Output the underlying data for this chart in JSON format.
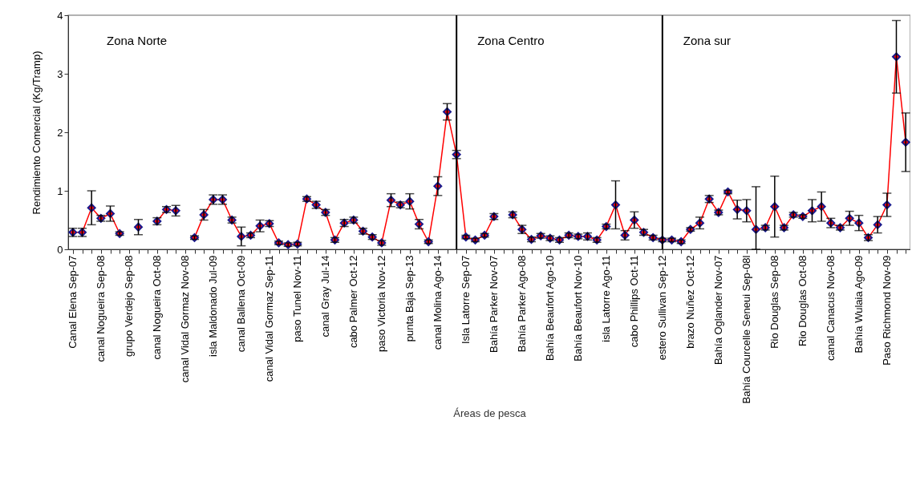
{
  "chart_data": {
    "type": "line",
    "xlabel": "Áreas de pesca",
    "ylabel": "Rendimiento Comercial (Kg/Tramp)",
    "categories": [
      "Canal Elena Sep-07",
      null,
      null,
      "canal Nogueira Sep-08",
      null,
      null,
      "grupo Verdejo Sep-08",
      null,
      null,
      "canal Nogueira Oct-08",
      null,
      null,
      "canal Vidal Gormaz Nov-08",
      null,
      null,
      "isla Maldonado Jul-09",
      null,
      null,
      "canal Ballena Oct-09",
      null,
      null,
      "canal Vidal Gormaz Sep-11",
      null,
      null,
      "paso Tunel Nov-11",
      null,
      null,
      "canal Gray Jul-14",
      null,
      null,
      "cabo Palmer Oct-12",
      null,
      null,
      "paso Victoria Nov-12",
      null,
      null,
      "punta Baja Sep-13",
      null,
      null,
      "canal Molina Ago-14",
      null,
      null,
      "Isla Latorre Sep-07",
      null,
      null,
      "Bahía Parker  Nov-07",
      null,
      null,
      "Bahía Parker Ago-08",
      null,
      null,
      "Bahía Beaufort Ago-10",
      null,
      null,
      "Bahía Beaufort Nov-10",
      null,
      null,
      "isla Latorre Ago-11",
      null,
      null,
      "cabo Phillips Oct-11",
      null,
      null,
      "estero Sullivan Sep-12",
      null,
      null,
      "brazo Nuñez Oct-12",
      null,
      null,
      "Bahía Oglander Nov-07",
      null,
      null,
      "Bahía Courcelle Seneui Sep-08l",
      null,
      null,
      "Rio Douglas Sep-08",
      null,
      null,
      "Rio Douglas Oct-08",
      null,
      null,
      "canal Canacus Nov-08",
      null,
      null,
      "Bahía Wulaia Ago-09",
      null,
      null,
      "Paso Richmond Nov-09",
      null,
      null
    ],
    "series": [
      {
        "color": "#ff0000",
        "values": [
          0.29,
          0.29,
          0.71,
          0.53,
          0.61,
          0.27,
          null,
          0.38,
          null,
          0.48,
          0.68,
          0.66,
          null,
          0.2,
          0.59,
          0.85,
          0.85,
          0.5,
          0.22,
          0.24,
          0.4,
          0.44,
          0.11,
          0.08,
          0.09,
          0.86,
          0.76,
          0.63,
          0.16,
          0.45,
          0.5,
          0.31,
          0.21,
          0.11,
          0.84,
          0.76,
          0.82,
          0.43,
          0.13,
          1.08,
          2.35,
          1.62,
          0.21,
          0.16,
          0.24,
          0.56,
          null,
          0.59,
          0.34,
          0.17,
          0.23,
          0.19,
          0.16,
          0.24,
          0.22,
          0.22,
          0.16,
          0.39,
          0.76,
          0.24,
          0.5,
          0.29,
          0.2,
          0.16,
          0.16,
          0.13,
          0.34,
          0.45,
          0.86,
          0.63,
          0.98,
          0.68,
          0.66,
          0.34,
          0.37,
          0.73,
          0.37,
          0.59,
          0.56,
          0.66,
          0.73,
          0.45,
          0.37,
          0.53,
          0.45,
          0.2,
          0.42,
          0.76,
          3.29,
          1.83
        ],
        "errors": [
          0.07,
          0.07,
          0.29,
          0.05,
          0.13,
          0.03,
          null,
          0.13,
          null,
          0.06,
          0.05,
          0.09,
          null,
          0.03,
          0.09,
          0.08,
          0.08,
          0.05,
          0.16,
          0.04,
          0.1,
          0.05,
          0.03,
          0.03,
          0.03,
          0.04,
          0.06,
          0.05,
          0.04,
          0.06,
          0.05,
          0.05,
          0.04,
          0.04,
          0.11,
          0.05,
          0.13,
          0.08,
          0.03,
          0.16,
          0.14,
          0.07,
          0.03,
          0.03,
          0.03,
          0.05,
          null,
          0.05,
          0.07,
          0.04,
          0.04,
          0.04,
          0.04,
          0.04,
          0.04,
          0.06,
          0.04,
          0.04,
          0.41,
          0.08,
          0.14,
          0.05,
          0.04,
          0.03,
          0.03,
          0.03,
          0.03,
          0.1,
          0.06,
          0.04,
          0.03,
          0.16,
          0.19,
          [
            0,
            1.07
          ],
          0.04,
          0.52,
          0.04,
          0.04,
          0.03,
          0.19,
          0.25,
          0.08,
          0.04,
          0.12,
          0.13,
          0.05,
          0.14,
          0.2,
          0.62,
          0.5
        ]
      }
    ],
    "ylim": [
      0,
      4
    ],
    "yticks": [
      0,
      1,
      2,
      3,
      4
    ],
    "marker": "diamond",
    "annotations": [
      "Zona Norte",
      "Zona Centro",
      "Zona sur"
    ]
  }
}
